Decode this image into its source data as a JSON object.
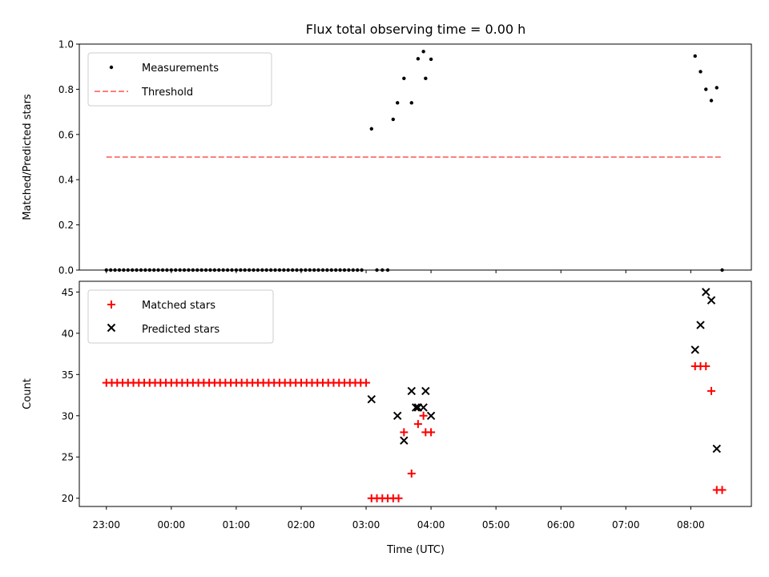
{
  "figure": {
    "title": "Flux total observing time = 0.00 h",
    "xlabel": "Time (UTC)"
  },
  "chart_data": [
    {
      "type": "scatter",
      "ylabel": "Matched/Predicted stars",
      "ylim": [
        0,
        1.0
      ],
      "yticks": [
        0.0,
        0.2,
        0.4,
        0.6,
        0.8,
        1.0
      ],
      "ytick_labels": [
        "0.0",
        "0.2",
        "0.4",
        "0.6",
        "0.8",
        "1.0"
      ],
      "xlim": [
        "22:35",
        "08:56"
      ],
      "xticks": [
        "23:00",
        "00:00",
        "01:00",
        "02:00",
        "03:00",
        "04:00",
        "05:00",
        "06:00",
        "07:00",
        "08:00"
      ],
      "grid": false,
      "legend_position": "top-left",
      "series": [
        {
          "name": "Measurements",
          "kind": "points",
          "marker": "dot",
          "color": "#000000",
          "x": [
            "23:00",
            "23:04",
            "23:08",
            "23:12",
            "23:16",
            "23:20",
            "23:24",
            "23:28",
            "23:32",
            "23:36",
            "23:40",
            "23:44",
            "23:48",
            "23:52",
            "23:56",
            "00:00",
            "00:04",
            "00:08",
            "00:12",
            "00:16",
            "00:20",
            "00:24",
            "00:28",
            "00:32",
            "00:36",
            "00:40",
            "00:44",
            "00:48",
            "00:52",
            "00:56",
            "01:00",
            "01:04",
            "01:08",
            "01:12",
            "01:16",
            "01:20",
            "01:24",
            "01:28",
            "01:32",
            "01:36",
            "01:40",
            "01:44",
            "01:48",
            "01:52",
            "01:56",
            "02:00",
            "02:04",
            "02:08",
            "02:12",
            "02:16",
            "02:20",
            "02:24",
            "02:28",
            "02:32",
            "02:36",
            "02:40",
            "02:44",
            "02:48",
            "02:52",
            "02:56",
            "03:05",
            "03:10",
            "03:15",
            "03:20",
            "03:25",
            "03:29",
            "03:35",
            "03:42",
            "03:48",
            "03:53",
            "03:55",
            "04:00",
            "08:04",
            "08:09",
            "08:14",
            "08:19",
            "08:24",
            "08:29"
          ],
          "y": [
            0,
            0,
            0,
            0,
            0,
            0,
            0,
            0,
            0,
            0,
            0,
            0,
            0,
            0,
            0,
            0,
            0,
            0,
            0,
            0,
            0,
            0,
            0,
            0,
            0,
            0,
            0,
            0,
            0,
            0,
            0,
            0,
            0,
            0,
            0,
            0,
            0,
            0,
            0,
            0,
            0,
            0,
            0,
            0,
            0,
            0,
            0,
            0,
            0,
            0,
            0,
            0,
            0,
            0,
            0,
            0,
            0,
            0,
            0,
            0,
            0.625,
            0,
            0,
            0,
            0.667,
            0.74,
            0.848,
            0.74,
            0.935,
            0.967,
            0.848,
            0.933,
            0.947,
            0.878,
            0.8,
            0.75,
            0.807,
            0
          ]
        },
        {
          "name": "Threshold",
          "kind": "line",
          "style": "dashed",
          "color": "#ff7f7f",
          "x": [
            "23:00",
            "08:29"
          ],
          "y": [
            0.5,
            0.5
          ]
        }
      ]
    },
    {
      "type": "scatter",
      "ylabel": "Count",
      "ylim": [
        19,
        46.3
      ],
      "yticks": [
        20,
        25,
        30,
        35,
        40,
        45
      ],
      "ytick_labels": [
        "20",
        "25",
        "30",
        "35",
        "40",
        "45"
      ],
      "xlim": [
        "22:35",
        "08:56"
      ],
      "xticks": [
        "23:00",
        "00:00",
        "01:00",
        "02:00",
        "03:00",
        "04:00",
        "05:00",
        "06:00",
        "07:00",
        "08:00"
      ],
      "xtick_labels": [
        "23:00",
        "00:00",
        "01:00",
        "02:00",
        "03:00",
        "04:00",
        "05:00",
        "06:00",
        "07:00",
        "08:00"
      ],
      "grid": false,
      "legend_position": "top-left",
      "series": [
        {
          "name": "Matched stars",
          "kind": "points",
          "marker": "plus",
          "color": "#ff0000",
          "x": [
            "23:00",
            "23:05",
            "23:10",
            "23:15",
            "23:20",
            "23:25",
            "23:30",
            "23:35",
            "23:40",
            "23:45",
            "23:50",
            "23:55",
            "00:00",
            "00:05",
            "00:10",
            "00:15",
            "00:20",
            "00:25",
            "00:30",
            "00:35",
            "00:40",
            "00:45",
            "00:50",
            "00:55",
            "01:00",
            "01:05",
            "01:10",
            "01:15",
            "01:20",
            "01:25",
            "01:30",
            "01:35",
            "01:40",
            "01:45",
            "01:50",
            "01:55",
            "02:00",
            "02:05",
            "02:10",
            "02:15",
            "02:20",
            "02:25",
            "02:30",
            "02:35",
            "02:40",
            "02:45",
            "02:50",
            "02:55",
            "03:00",
            "03:05",
            "03:10",
            "03:15",
            "03:20",
            "03:25",
            "03:30",
            "03:35",
            "03:42",
            "03:48",
            "03:53",
            "03:55",
            "04:00",
            "08:04",
            "08:09",
            "08:14",
            "08:19",
            "08:24",
            "08:29"
          ],
          "y": [
            34,
            34,
            34,
            34,
            34,
            34,
            34,
            34,
            34,
            34,
            34,
            34,
            34,
            34,
            34,
            34,
            34,
            34,
            34,
            34,
            34,
            34,
            34,
            34,
            34,
            34,
            34,
            34,
            34,
            34,
            34,
            34,
            34,
            34,
            34,
            34,
            34,
            34,
            34,
            34,
            34,
            34,
            34,
            34,
            34,
            34,
            34,
            34,
            34,
            20,
            20,
            20,
            20,
            20,
            20,
            28,
            23,
            29,
            30,
            28,
            28,
            36,
            36,
            36,
            33,
            21,
            21
          ]
        },
        {
          "name": "Predicted stars",
          "kind": "points",
          "marker": "x",
          "color": "#000000",
          "x": [
            "03:05",
            "03:29",
            "03:35",
            "03:42",
            "03:46",
            "03:48",
            "03:53",
            "03:55",
            "04:00",
            "08:04",
            "08:09",
            "08:14",
            "08:19",
            "08:24"
          ],
          "y": [
            32,
            30,
            27,
            33,
            31,
            31,
            31,
            33,
            30,
            38,
            41,
            45,
            44,
            26
          ]
        }
      ]
    }
  ]
}
